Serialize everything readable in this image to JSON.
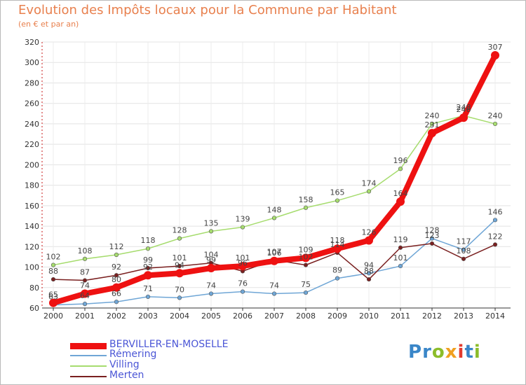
{
  "title": "Evolution des Impôts locaux pour la Commune par Habitant",
  "subtitle": "(en € et par an)",
  "logo": [
    "P",
    "r",
    "o",
    "x",
    "i",
    "t",
    "i"
  ],
  "logo_colors": [
    "#3a86c8",
    "#3a86c8",
    "#8cbd2a",
    "#f0a020",
    "#e23b2e",
    "#3a86c8",
    "#8cbd2a"
  ],
  "chart_data": {
    "type": "line",
    "x": [
      2000,
      2001,
      2002,
      2003,
      2004,
      2005,
      2006,
      2007,
      2008,
      2009,
      2010,
      2011,
      2012,
      2013,
      2014
    ],
    "ylim": [
      60,
      320
    ],
    "yticks": [
      60,
      80,
      100,
      120,
      140,
      160,
      180,
      200,
      220,
      240,
      260,
      280,
      300,
      320
    ],
    "grid": true,
    "legend_position": "bottom-left",
    "series": [
      {
        "name": "Villing",
        "color": "#a6dc6e",
        "width": 1.5,
        "marker": 2.8,
        "values": [
          102,
          108,
          112,
          118,
          128,
          135,
          139,
          148,
          158,
          165,
          174,
          196,
          240,
          248,
          240
        ]
      },
      {
        "name": "Rémering",
        "color": "#6fa6d6",
        "width": 1.5,
        "marker": 2.8,
        "values": [
          63,
          64,
          66,
          71,
          70,
          74,
          76,
          74,
          75,
          89,
          94,
          101,
          128,
          117,
          146
        ]
      },
      {
        "name": "Merten",
        "color": "#7a2020",
        "width": 1.5,
        "marker": 2.8,
        "values": [
          88,
          87,
          92,
          99,
          101,
          104,
          96,
          107,
          102,
          114,
          88,
          119,
          123,
          108,
          122
        ]
      },
      {
        "name": "BERVILLER-EN-MOSELLE",
        "color": "#ee1111",
        "width": 8,
        "marker": 6,
        "values": [
          65,
          74,
          80,
          92,
          94,
          99,
          101,
          106,
          109,
          118,
          126,
          164,
          231,
          246,
          307
        ]
      }
    ],
    "legend_order": [
      "BERVILLER-EN-MOSELLE",
      "Rémering",
      "Villing",
      "Merten"
    ]
  }
}
